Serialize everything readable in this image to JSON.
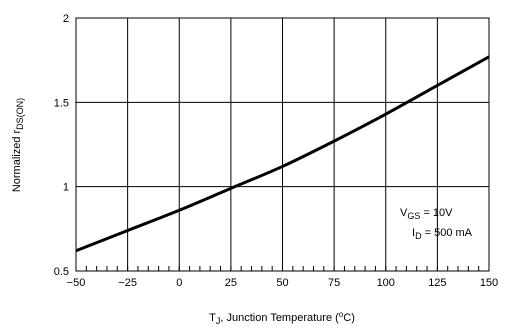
{
  "chart_data": {
    "type": "line",
    "title": "",
    "xlabel": {
      "main": "T",
      "sub": "J",
      "rest": ", Junction Temperature (",
      "deg": "o",
      "unit": "C)"
    },
    "ylabel": {
      "main": "Normalized r",
      "sub": "DS(ON)"
    },
    "xlim": [
      -50,
      150
    ],
    "ylim": [
      0.5,
      2
    ],
    "x_ticks": [
      -50,
      -25,
      0,
      25,
      50,
      75,
      100,
      125,
      150
    ],
    "x_tick_labels": [
      "−50",
      "−25",
      "0",
      "25",
      "50",
      "75",
      "100",
      "125",
      "150"
    ],
    "y_ticks": [
      0.5,
      1,
      1.5,
      2
    ],
    "y_tick_labels": [
      "0.5",
      "1",
      "1.5",
      "2"
    ],
    "grid": true,
    "series": [
      {
        "x": [
          -50,
          -25,
          0,
          25,
          50,
          75,
          100,
          125,
          150
        ],
        "y": [
          0.62,
          0.74,
          0.86,
          0.99,
          1.12,
          1.27,
          1.43,
          1.6,
          1.77
        ]
      }
    ],
    "annotations": [
      {
        "main": "V",
        "sub": "GS",
        "rest": " = 10V"
      },
      {
        "main": "I",
        "sub": "D",
        "rest": " = 500 mA"
      }
    ]
  }
}
